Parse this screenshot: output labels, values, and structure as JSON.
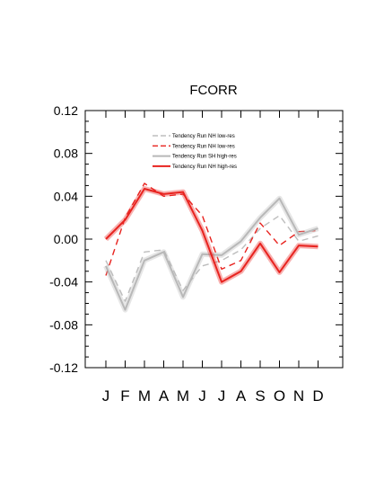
{
  "chart_data": {
    "type": "line",
    "title": "FCORR",
    "categories": [
      "J",
      "F",
      "M",
      "A",
      "M",
      "J",
      "J",
      "A",
      "S",
      "O",
      "N",
      "D"
    ],
    "ylim": [
      -0.12,
      0.12
    ],
    "yticks": [
      "0.12",
      "0.08",
      "0.04",
      "0.00",
      "-0.04",
      "-0.08",
      "-0.12"
    ],
    "legend_position": "upper-center",
    "grid": false,
    "series": [
      {
        "name": "Tendency Run NH low-res",
        "color": "#bdbdbd",
        "style": "dashed",
        "values": [
          -0.02,
          -0.058,
          -0.012,
          -0.01,
          -0.048,
          -0.025,
          -0.02,
          -0.01,
          0.01,
          0.022,
          -0.002,
          0.003
        ]
      },
      {
        "name": "Tendency Run NH low-res",
        "color": "#e8231f",
        "style": "dashed",
        "values": [
          -0.034,
          0.02,
          0.052,
          0.04,
          0.042,
          0.022,
          -0.028,
          -0.02,
          0.015,
          -0.006,
          0.007,
          0.008
        ]
      },
      {
        "name": "Tendency Run SH high-res",
        "color": "#b8b8b8",
        "style": "solid",
        "values": [
          -0.025,
          -0.066,
          -0.02,
          -0.012,
          -0.054,
          -0.014,
          -0.015,
          -0.002,
          0.02,
          0.038,
          0.004,
          0.01
        ]
      },
      {
        "name": "Tendency Run NH high-res",
        "color": "#e8231f",
        "style": "solid",
        "values": [
          0.0,
          0.018,
          0.047,
          0.042,
          0.044,
          0.008,
          -0.04,
          -0.03,
          -0.004,
          -0.031,
          -0.006,
          -0.007
        ]
      }
    ]
  }
}
